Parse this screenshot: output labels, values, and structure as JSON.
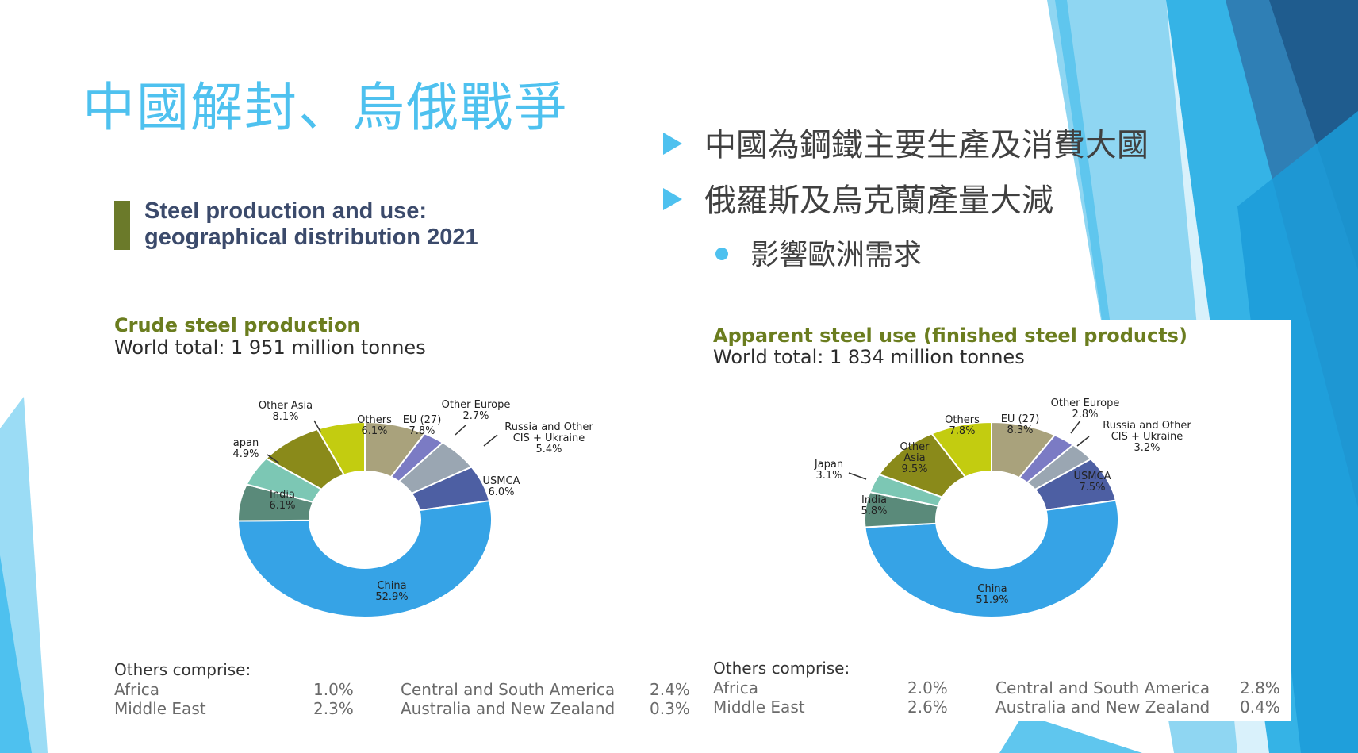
{
  "slide": {
    "title": "中國解封、烏俄戰爭",
    "bullets": [
      "中國為鋼鐵主要生產及消費大國",
      "俄羅斯及烏克蘭產量大減"
    ],
    "sub_bullet": "影響歐洲需求",
    "accent_color": "#4ec1ef"
  },
  "header": {
    "line1": "Steel production and use:",
    "line2": "geographical distribution 2021"
  },
  "chart_data": [
    {
      "type": "pie",
      "title": "Crude steel production",
      "subtitle": "World total: 1 951 million tonnes",
      "slices": [
        {
          "name": "EU (27)",
          "value": 7.8,
          "color": "#a9a27c"
        },
        {
          "name": "Other Europe",
          "value": 2.7,
          "color": "#7b7bc4"
        },
        {
          "name": "Russia and Other CIS + Ukraine",
          "value": 5.4,
          "color": "#9aa6b2"
        },
        {
          "name": "USMCA",
          "value": 6.0,
          "color": "#4d5fa3"
        },
        {
          "name": "China",
          "value": 52.9,
          "color": "#36a3e6"
        },
        {
          "name": "India",
          "value": 6.1,
          "color": "#5a8a7a"
        },
        {
          "name": "Japan",
          "value": 4.9,
          "color": "#7cc7b4"
        },
        {
          "name": "Other Asia",
          "value": 8.1,
          "color": "#8a8a1a"
        },
        {
          "name": "Others",
          "value": 6.1,
          "color": "#c3cc10"
        }
      ],
      "labels": [
        {
          "lines": [
            "EU (27)",
            "7.8%"
          ]
        },
        {
          "lines": [
            "Other Europe",
            "2.7%"
          ]
        },
        {
          "lines": [
            "Russia and Other",
            "CIS + Ukraine",
            "5.4%"
          ]
        },
        {
          "lines": [
            "USMCA",
            "6.0%"
          ]
        },
        {
          "lines": [
            "China",
            "52.9%"
          ]
        },
        {
          "lines": [
            "India",
            "6.1%"
          ]
        },
        {
          "lines": [
            "apan",
            "4.9%"
          ]
        },
        {
          "lines": [
            "Other Asia",
            "8.1%"
          ]
        },
        {
          "lines": [
            "Others",
            "6.1%"
          ]
        }
      ],
      "others_title": "Others comprise:",
      "others": [
        {
          "name": "Africa",
          "value": "1.0%"
        },
        {
          "name": "Middle East",
          "value": "2.3%"
        },
        {
          "name": "Central and South America",
          "value": "2.4%"
        },
        {
          "name": "Australia and New Zealand",
          "value": "0.3%"
        }
      ]
    },
    {
      "type": "pie",
      "title": "Apparent steel use (finished steel products)",
      "subtitle": "World total: 1 834 million tonnes",
      "slices": [
        {
          "name": "EU (27)",
          "value": 8.3,
          "color": "#a9a27c"
        },
        {
          "name": "Other Europe",
          "value": 2.8,
          "color": "#7b7bc4"
        },
        {
          "name": "Russia and Other CIS + Ukraine",
          "value": 3.2,
          "color": "#9aa6b2"
        },
        {
          "name": "USMCA",
          "value": 7.5,
          "color": "#4d5fa3"
        },
        {
          "name": "China",
          "value": 51.9,
          "color": "#36a3e6"
        },
        {
          "name": "India",
          "value": 5.8,
          "color": "#5a8a7a"
        },
        {
          "name": "Japan",
          "value": 3.1,
          "color": "#7cc7b4"
        },
        {
          "name": "Other Asia",
          "value": 9.5,
          "color": "#8a8a1a"
        },
        {
          "name": "Others",
          "value": 7.8,
          "color": "#c3cc10"
        }
      ],
      "labels": [
        {
          "lines": [
            "EU (27)",
            "8.3%"
          ]
        },
        {
          "lines": [
            "Other Europe",
            "2.8%"
          ]
        },
        {
          "lines": [
            "Russia and Other",
            "CIS + Ukraine",
            "3.2%"
          ]
        },
        {
          "lines": [
            "USMCA",
            "7.5%"
          ]
        },
        {
          "lines": [
            "China",
            "51.9%"
          ]
        },
        {
          "lines": [
            "India",
            "5.8%"
          ]
        },
        {
          "lines": [
            "Japan",
            "3.1%"
          ]
        },
        {
          "lines": [
            "Other",
            "Asia",
            "9.5%"
          ]
        },
        {
          "lines": [
            "Others",
            "7.8%"
          ]
        }
      ],
      "others_title": "Others comprise:",
      "others": [
        {
          "name": "Africa",
          "value": "2.0%"
        },
        {
          "name": "Middle East",
          "value": "2.6%"
        },
        {
          "name": "Central and South America",
          "value": "2.8%"
        },
        {
          "name": "Australia and New Zealand",
          "value": "0.4%"
        }
      ]
    }
  ]
}
